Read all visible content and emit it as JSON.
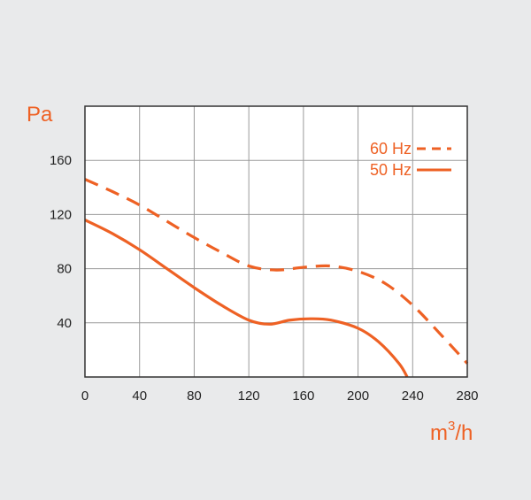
{
  "chart_data": {
    "type": "line",
    "ylabel": "Pa",
    "xlabel_base": "m",
    "xlabel_sup": "3",
    "xlabel_suffix": "/h",
    "xlim": [
      0,
      280
    ],
    "ylim": [
      0,
      200
    ],
    "xticks": [
      0,
      40,
      80,
      120,
      160,
      200,
      240,
      280
    ],
    "yticks": [
      40,
      80,
      120,
      160
    ],
    "grid": true,
    "legend_position": "top-right",
    "colors": {
      "series": "#ee6124",
      "grid": "#9a9a9a",
      "frame": "#333333",
      "plot_bg": "#ffffff",
      "page_bg": "#e9eaeb"
    },
    "series": [
      {
        "name": "60 Hz",
        "style": "dashed",
        "x": [
          0,
          20,
          40,
          60,
          80,
          100,
          120,
          140,
          160,
          180,
          200,
          220,
          240,
          260,
          280
        ],
        "y": [
          146,
          137,
          127,
          115,
          103,
          92,
          82,
          79,
          81,
          82,
          78,
          69,
          53,
          32,
          10
        ]
      },
      {
        "name": "50 Hz",
        "style": "solid",
        "x": [
          0,
          20,
          40,
          60,
          80,
          100,
          120,
          135,
          150,
          165,
          180,
          200,
          215,
          230,
          236
        ],
        "y": [
          116,
          106,
          94,
          80,
          66,
          53,
          42,
          39,
          42,
          43,
          42,
          36,
          26,
          10,
          0
        ]
      }
    ]
  }
}
